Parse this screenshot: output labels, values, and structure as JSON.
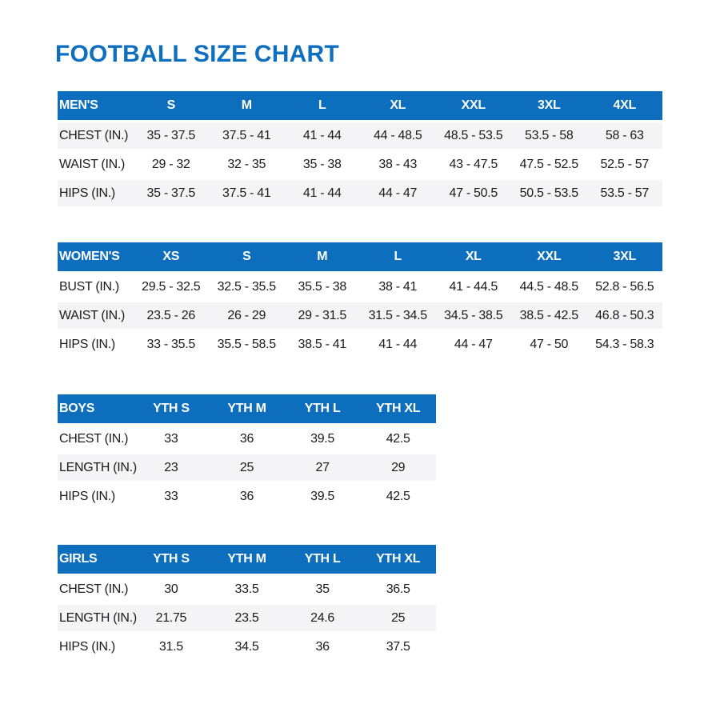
{
  "page": {
    "title": "FOOTBALL SIZE CHART"
  },
  "colors": {
    "title_blue": "#0e6fbf",
    "header_blue": "#0c6ebc",
    "header_text": "#ffffff",
    "body_text": "#1b1b1b",
    "stripe_gray": "#f4f4f6",
    "background": "#ffffff"
  },
  "tables": [
    {
      "name": "mens",
      "header": [
        "MEN'S",
        "S",
        "M",
        "L",
        "XL",
        "XXL",
        "3XL",
        "4XL"
      ],
      "rows": [
        {
          "label": "CHEST (IN.)",
          "values": [
            "35 - 37.5",
            "37.5 - 41",
            "41 - 44",
            "44 - 48.5",
            "48.5 - 53.5",
            "53.5 - 58",
            "58 - 63"
          ],
          "shaded": true
        },
        {
          "label": "WAIST (IN.)",
          "values": [
            "29 - 32",
            "32 - 35",
            "35 - 38",
            "38 - 43",
            "43 - 47.5",
            "47.5 - 52.5",
            "52.5 - 57"
          ],
          "shaded": false
        },
        {
          "label": "HIPS (IN.)",
          "values": [
            "35 - 37.5",
            "37.5 - 41",
            "41 - 44",
            "44 - 47",
            "47 - 50.5",
            "50.5 - 53.5",
            "53.5 - 57"
          ],
          "shaded": true
        }
      ]
    },
    {
      "name": "womens",
      "header": [
        "WOMEN'S",
        "XS",
        "S",
        "M",
        "L",
        "XL",
        "XXL",
        "3XL"
      ],
      "rows": [
        {
          "label": "BUST (IN.)",
          "values": [
            "29.5 - 32.5",
            "32.5 - 35.5",
            "35.5 - 38",
            "38 - 41",
            "41 - 44.5",
            "44.5 - 48.5",
            "52.8 - 56.5"
          ],
          "shaded": false
        },
        {
          "label": "WAIST (IN.)",
          "values": [
            "23.5 - 26",
            "26 - 29",
            "29 - 31.5",
            "31.5 - 34.5",
            "34.5 - 38.5",
            "38.5 - 42.5",
            "46.8 - 50.3"
          ],
          "shaded": true
        },
        {
          "label": "HIPS (IN.)",
          "values": [
            "33 - 35.5",
            "35.5 - 58.5",
            "38.5 - 41",
            "41 - 44",
            "44 - 47",
            "47 - 50",
            "54.3 - 58.3"
          ],
          "shaded": false
        }
      ]
    },
    {
      "name": "boys",
      "header": [
        "BOYS",
        "YTH S",
        "YTH M",
        "YTH L",
        "YTH XL"
      ],
      "rows": [
        {
          "label": "CHEST (IN.)",
          "values": [
            "33",
            "36",
            "39.5",
            "42.5"
          ],
          "shaded": false
        },
        {
          "label": "LENGTH (IN.)",
          "values": [
            "23",
            "25",
            "27",
            "29"
          ],
          "shaded": true
        },
        {
          "label": "HIPS (IN.)",
          "values": [
            "33",
            "36",
            "39.5",
            "42.5"
          ],
          "shaded": false
        }
      ]
    },
    {
      "name": "girls",
      "header": [
        "GIRLS",
        "YTH S",
        "YTH M",
        "YTH L",
        "YTH XL"
      ],
      "rows": [
        {
          "label": "CHEST (IN.)",
          "values": [
            "30",
            "33.5",
            "35",
            "36.5"
          ],
          "shaded": false
        },
        {
          "label": "LENGTH (IN.)",
          "values": [
            "21.75",
            "23.5",
            "24.6",
            "25"
          ],
          "shaded": true
        },
        {
          "label": "HIPS (IN.)",
          "values": [
            "31.5",
            "34.5",
            "36",
            "37.5"
          ],
          "shaded": false
        }
      ]
    }
  ]
}
